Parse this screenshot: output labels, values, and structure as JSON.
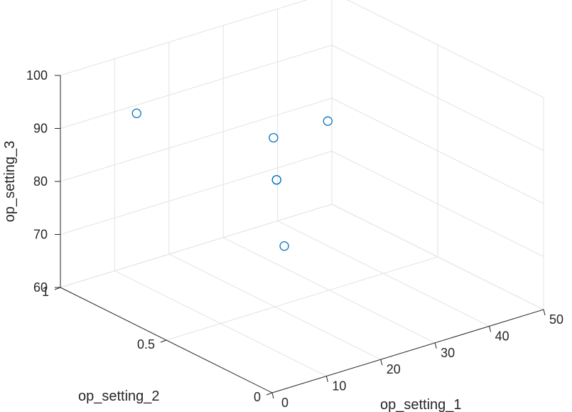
{
  "chart_data": {
    "type": "scatter",
    "xlabel": "op_setting_1",
    "ylabel": "op_setting_2",
    "zlabel": "op_setting_3",
    "xlim": [
      0,
      50
    ],
    "ylim": [
      0,
      1
    ],
    "zlim": [
      60,
      100
    ],
    "x_ticks": [
      "0",
      "10",
      "20",
      "30",
      "40",
      "50"
    ],
    "y_ticks": [
      "0",
      "0.5",
      "1"
    ],
    "z_ticks": [
      "60",
      "70",
      "80",
      "90",
      "100"
    ],
    "grid": true,
    "marker": "circle",
    "color": "#0072BD",
    "points": [
      {
        "x": 0,
        "y": 0.64,
        "z": 100
      },
      {
        "x": 10,
        "y": 0.25,
        "z": 100
      },
      {
        "x": 20,
        "y": 0.25,
        "z": 100
      },
      {
        "x": 25,
        "y": 0.62,
        "z": 80
      },
      {
        "x": 25,
        "y": 0.62,
        "z": 80
      },
      {
        "x": 35,
        "y": 0.84,
        "z": 60
      }
    ]
  }
}
